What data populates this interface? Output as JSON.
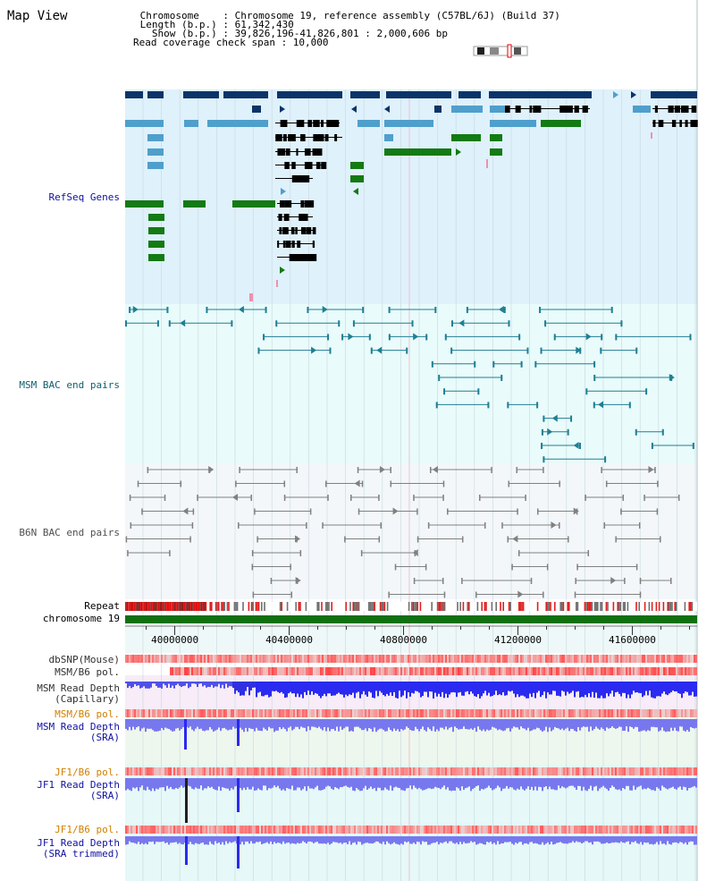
{
  "title": "Map View",
  "header": {
    "lines": [
      " Chromosome    : Chromosome 19, reference assembly (C57BL/6J) (Build 37)",
      " Length (b.p.) : 61,342,430",
      "   Show (b.p.) : 39,826,196-41,826,801 : 2,000,606 bp",
      "Read coverage check span : 10,000"
    ]
  },
  "tracks": {
    "refseq": "RefSeq Genes",
    "msm_bac": "MSM BAC end pairs",
    "b6n_bac": "B6N BAC end pairs",
    "repeat": "Repeat",
    "chromosome": "chromosome 19",
    "dbsnp": "dbSNP(Mouse)",
    "msm_pol1": "MSM/B6 pol.",
    "msm_depth_cap_1": "MSM Read Depth",
    "msm_depth_cap_2": "(Capillary)",
    "msm_pol2": "MSM/B6 pol.",
    "msm_depth_sra_1": "MSM Read Depth",
    "msm_depth_sra_2": "(SRA)",
    "jf1_pol1": "JF1/B6 pol.",
    "jf1_depth_sra_1": "JF1 Read Depth",
    "jf1_depth_sra_2": "(SRA)",
    "jf1_pol2": "JF1/B6 pol.",
    "jf1_depth_trim_1": "JF1 Read Depth",
    "jf1_depth_trim_2": "(SRA trimmed)"
  },
  "axis": {
    "range": [
      39826196,
      41826801
    ],
    "ticks": [
      "40000000",
      "40400000",
      "40800000",
      "41200000",
      "41600000"
    ],
    "tick_values": [
      40000000,
      40400000,
      40800000,
      41200000,
      41600000
    ]
  },
  "colors": {
    "refseq_bg": "#dff1fb",
    "bac_msm_bg": "#e9fbfb",
    "bac_b6n_bg": "#f3f7fa",
    "gene_dark": "#0d3468",
    "gene_mid": "#4f9fcc",
    "gene_green": "#147a14",
    "bac_teal": "#1f7f94",
    "bac_gray": "#808080",
    "chromosome": "#107010",
    "depth_blue": "#2a2af0",
    "depth_light": "#7878ee",
    "pol_red": "#f07070"
  }
}
